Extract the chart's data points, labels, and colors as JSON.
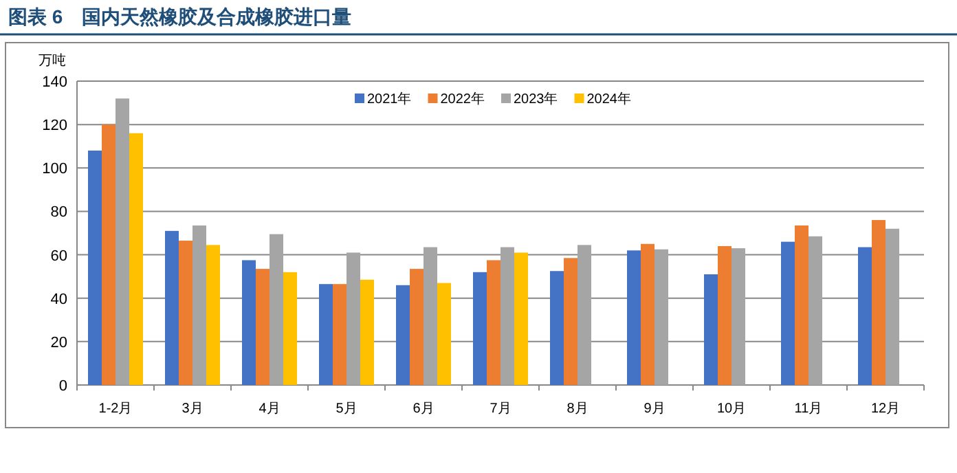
{
  "chart_data": {
    "type": "bar",
    "title": "图表 6　国内天然橡胶及合成橡胶进口量",
    "ylabel": "万吨",
    "categories": [
      "1-2月",
      "3月",
      "4月",
      "5月",
      "6月",
      "7月",
      "8月",
      "9月",
      "10月",
      "11月",
      "12月"
    ],
    "series": [
      {
        "name": "2021年",
        "color": "#4472c4",
        "values": [
          108,
          71,
          57.5,
          46.5,
          46,
          52,
          52.5,
          62,
          51,
          66,
          63.5
        ]
      },
      {
        "name": "2022年",
        "color": "#ed7d31",
        "values": [
          120,
          66.5,
          53.5,
          46.5,
          53.5,
          57.5,
          58.5,
          65,
          64,
          73.5,
          76
        ]
      },
      {
        "name": "2023年",
        "color": "#a5a5a5",
        "values": [
          132,
          73.5,
          69.5,
          61,
          63.5,
          63.5,
          64.5,
          62.5,
          63,
          68.5,
          72
        ]
      },
      {
        "name": "2024年",
        "color": "#ffc000",
        "values": [
          116,
          64.5,
          52,
          48.5,
          47,
          61,
          null,
          null,
          null,
          null,
          null
        ]
      }
    ],
    "ylim": [
      0,
      140
    ],
    "yticks": [
      0,
      20,
      40,
      60,
      80,
      100,
      120,
      140
    ],
    "grid": "y",
    "legend": "top"
  }
}
